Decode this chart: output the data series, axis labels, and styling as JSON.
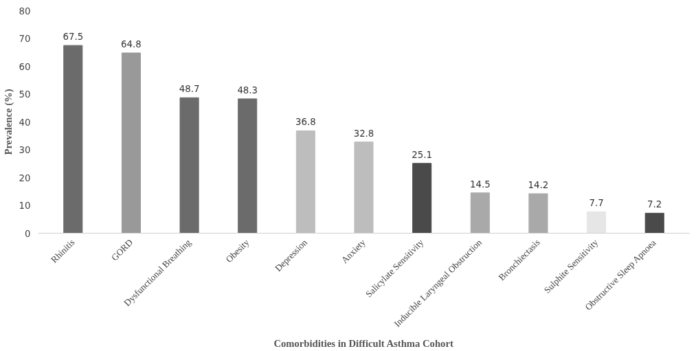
{
  "chart_data": {
    "type": "bar",
    "xlabel": "Comorbidities in Difficult Asthma Cohort",
    "ylabel": "Prevalence (%)",
    "categories": [
      "Rhinitis",
      "GORD",
      "Dysfunctional Breathing",
      "Obesity",
      "Depression",
      "Anxiety",
      "Salicylate Sensitivity",
      "Inducible Laryngeal Obstruction",
      "Bronchiectasis",
      "Sulphite Sensitivity",
      "Obstructive Sleep Apnoea"
    ],
    "values": [
      67.5,
      64.8,
      48.7,
      48.3,
      36.8,
      32.8,
      25.1,
      14.5,
      14.2,
      7.7,
      7.2
    ],
    "colors": [
      "#6b6b6b",
      "#999999",
      "#6b6b6b",
      "#6b6b6b",
      "#bdbdbd",
      "#bdbdbd",
      "#4a4a4a",
      "#a9a9a9",
      "#a9a9a9",
      "#e6e6e6",
      "#4a4a4a"
    ],
    "ylim": [
      0,
      80
    ],
    "yticks": [
      0,
      10,
      20,
      30,
      40,
      50,
      60,
      70,
      80
    ],
    "data_labels": true,
    "grid": false
  }
}
